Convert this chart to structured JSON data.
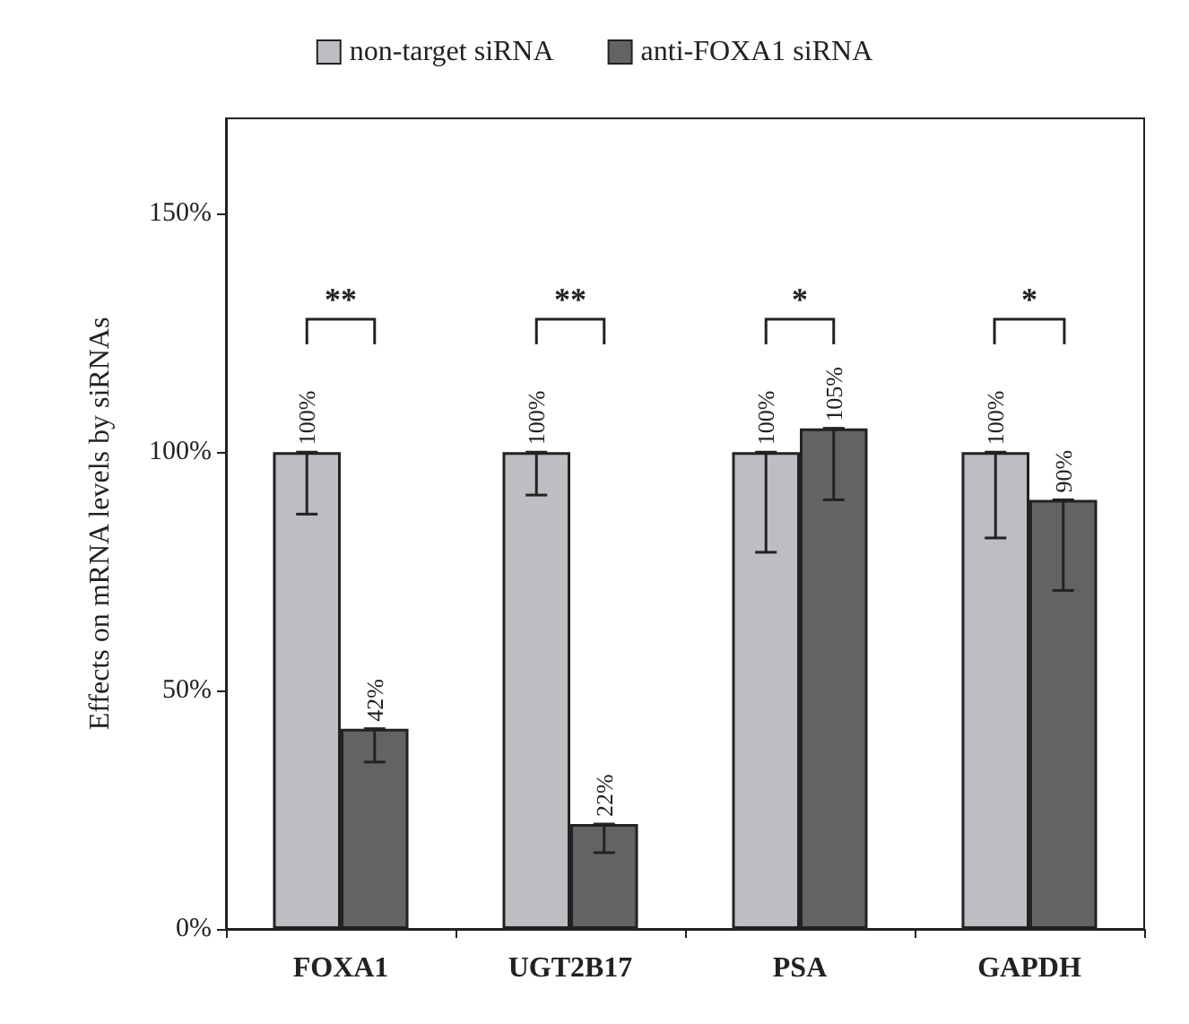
{
  "chart_data": {
    "type": "bar",
    "ylabel": "Effects on mRNA levels by siRNAs",
    "categories": [
      "FOXA1",
      "UGT2B17",
      "PSA",
      "GAPDH"
    ],
    "series": [
      {
        "name": "non-target siRNA",
        "color": "#bcbec1",
        "values": [
          100,
          100,
          100,
          100
        ],
        "errors": [
          [
            87,
            100
          ],
          [
            91,
            100
          ],
          [
            79,
            100
          ],
          [
            82,
            100
          ]
        ],
        "value_labels": [
          "100%",
          "100%",
          "100%",
          "100%"
        ]
      },
      {
        "name": "anti-FOXA1 siRNA",
        "color": "#636365",
        "values": [
          42,
          22,
          105,
          90
        ],
        "errors": [
          [
            35,
            42
          ],
          [
            16,
            22
          ],
          [
            90,
            105
          ],
          [
            71,
            90
          ]
        ],
        "value_labels": [
          "42%",
          "22%",
          "105%",
          "90%"
        ]
      }
    ],
    "ylim": [
      0,
      170
    ],
    "yticks": [
      {
        "value": 0,
        "label": "0%"
      },
      {
        "value": 50,
        "label": "50%"
      },
      {
        "value": 100,
        "label": "100%"
      },
      {
        "value": 150,
        "label": "150%"
      }
    ],
    "annotations": [
      "**",
      "**",
      "*",
      "*"
    ],
    "grid": false,
    "legend": "top"
  }
}
